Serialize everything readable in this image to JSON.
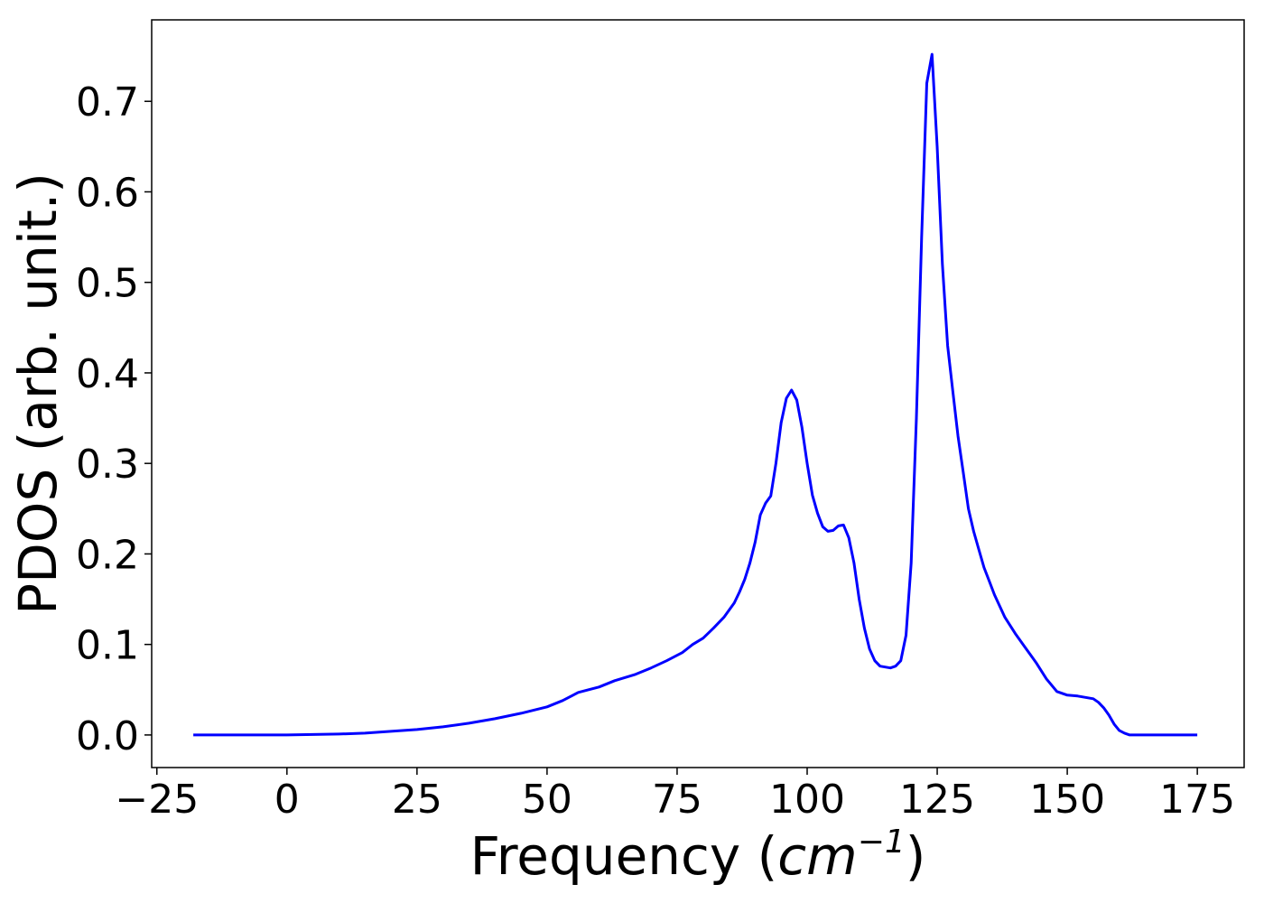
{
  "chart_data": {
    "type": "line",
    "xlabel_prefix": "Frequency (",
    "xlabel_unit": "cm",
    "xlabel_exponent": "−1",
    "xlabel_suffix": ")",
    "ylabel": "PDOS (arb. unit.)",
    "xlim": [
      -26,
      184
    ],
    "ylim": [
      -0.036,
      0.79
    ],
    "x_ticks": [
      -25,
      0,
      25,
      50,
      75,
      100,
      125,
      150,
      175
    ],
    "x_tick_labels": [
      "−25",
      "0",
      "25",
      "50",
      "75",
      "100",
      "125",
      "150",
      "175"
    ],
    "y_ticks": [
      0.0,
      0.1,
      0.2,
      0.3,
      0.4,
      0.5,
      0.6,
      0.7
    ],
    "y_tick_labels": [
      "0.0",
      "0.1",
      "0.2",
      "0.3",
      "0.4",
      "0.5",
      "0.6",
      "0.7"
    ],
    "grid": false,
    "line_color": "#0000ff",
    "series": [
      {
        "x": [
          -18,
          -10,
          0,
          5,
          10,
          15,
          20,
          25,
          30,
          35,
          40,
          45,
          50,
          53,
          56,
          60,
          63,
          67,
          70,
          73,
          76,
          78,
          80,
          82,
          84,
          86,
          87,
          88,
          89,
          90,
          91,
          92,
          93,
          94,
          95,
          96,
          97,
          98,
          99,
          100,
          101,
          102,
          103,
          104,
          105,
          106,
          107,
          108,
          109,
          110,
          111,
          112,
          113,
          114,
          115,
          116,
          117,
          118,
          119,
          120,
          121,
          122,
          123,
          124,
          125,
          126,
          127,
          128,
          129,
          130,
          131,
          132,
          133,
          134,
          135,
          136,
          138,
          140,
          142,
          144,
          146,
          148,
          150,
          152,
          154,
          155,
          156,
          157,
          158,
          159,
          160,
          161,
          162,
          165,
          170,
          175
        ],
        "y": [
          0.0,
          0.0,
          0.0,
          0.0005,
          0.001,
          0.002,
          0.004,
          0.006,
          0.009,
          0.013,
          0.018,
          0.024,
          0.031,
          0.038,
          0.047,
          0.053,
          0.06,
          0.067,
          0.074,
          0.082,
          0.091,
          0.1,
          0.107,
          0.118,
          0.13,
          0.146,
          0.158,
          0.172,
          0.19,
          0.213,
          0.243,
          0.256,
          0.264,
          0.3,
          0.345,
          0.372,
          0.381,
          0.37,
          0.34,
          0.3,
          0.265,
          0.245,
          0.23,
          0.225,
          0.226,
          0.231,
          0.232,
          0.218,
          0.19,
          0.15,
          0.118,
          0.095,
          0.082,
          0.076,
          0.075,
          0.074,
          0.076,
          0.082,
          0.11,
          0.19,
          0.35,
          0.55,
          0.72,
          0.752,
          0.65,
          0.52,
          0.43,
          0.38,
          0.33,
          0.29,
          0.25,
          0.225,
          0.205,
          0.185,
          0.17,
          0.155,
          0.13,
          0.112,
          0.096,
          0.08,
          0.062,
          0.048,
          0.044,
          0.043,
          0.041,
          0.04,
          0.036,
          0.03,
          0.022,
          0.012,
          0.005,
          0.002,
          0.0,
          0.0,
          0.0,
          0.0
        ]
      }
    ]
  }
}
